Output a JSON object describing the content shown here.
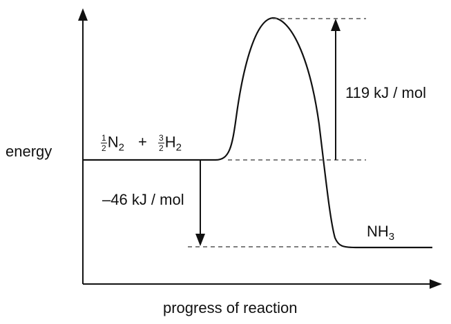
{
  "axes": {
    "y_label": "energy",
    "x_label": "progress of reaction"
  },
  "reactants": {
    "n2_coeff_num": "1",
    "n2_coeff_den": "2",
    "n2_symbol": "N",
    "n2_subscript": "2",
    "plus": "+",
    "h2_coeff_num": "3",
    "h2_coeff_den": "2",
    "h2_symbol": "H",
    "h2_subscript": "2"
  },
  "product": {
    "symbol": "NH",
    "subscript": "3"
  },
  "activation_energy": {
    "label": "119 kJ / mol",
    "value_kj_per_mol": 119
  },
  "enthalpy_change": {
    "label": "–46 kJ / mol",
    "value_kj_per_mol": -46
  },
  "colors": {
    "line": "#111111",
    "dashed": "#555555",
    "background": "#ffffff"
  }
}
